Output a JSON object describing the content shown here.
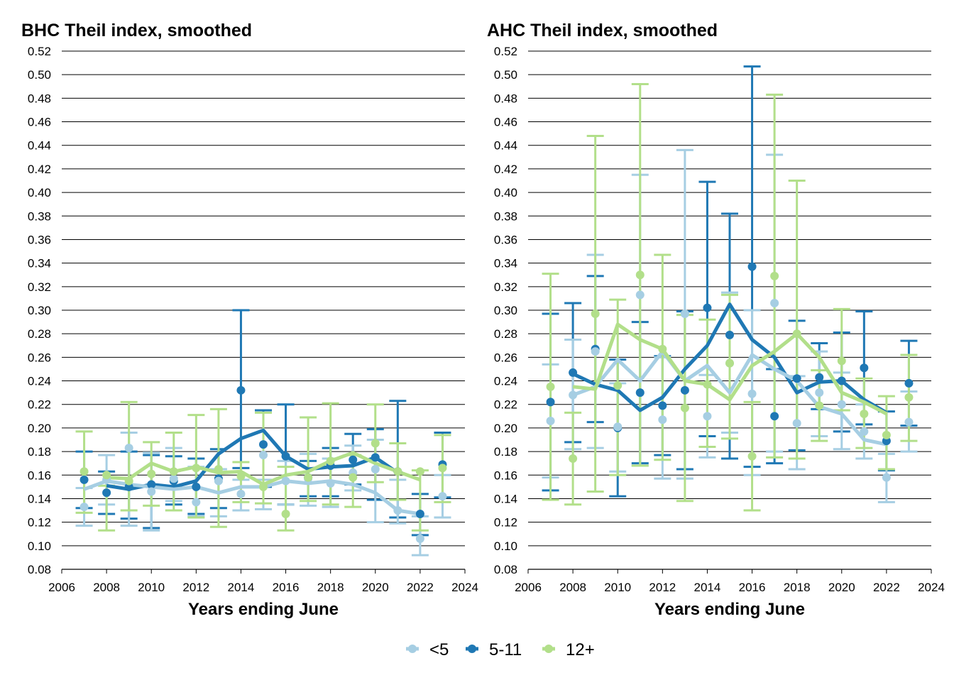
{
  "legend": [
    {
      "name": "<5",
      "color": "#a6cee3"
    },
    {
      "name": "5-11",
      "color": "#1f78b4"
    },
    {
      "name": "12+",
      "color": "#b2df8a"
    }
  ],
  "chart_data": [
    {
      "type": "line",
      "title": "BHC Theil index, smoothed",
      "xlabel": "Years ending June",
      "ylabel": "",
      "xlim": [
        2006,
        2024
      ],
      "ylim": [
        0.08,
        0.52
      ],
      "xticks": [
        "2006",
        "2008",
        "2010",
        "2012",
        "2014",
        "2016",
        "2018",
        "2020",
        "2022",
        "2024"
      ],
      "yticks": [
        "0.08",
        "0.10",
        "0.12",
        "0.14",
        "0.16",
        "0.18",
        "0.20",
        "0.22",
        "0.24",
        "0.26",
        "0.28",
        "0.30",
        "0.32",
        "0.34",
        "0.36",
        "0.38",
        "0.40",
        "0.42",
        "0.44",
        "0.46",
        "0.48",
        "0.50",
        "0.52"
      ],
      "grid": "horizontal",
      "series": [
        {
          "name": "<5",
          "color": "#a6cee3",
          "years": [
            2007,
            2008,
            2009,
            2010,
            2011,
            2012,
            2013,
            2014,
            2015,
            2016,
            2017,
            2018,
            2019,
            2020,
            2021,
            2022,
            2023
          ],
          "line": [
            0.148,
            0.155,
            0.152,
            0.15,
            0.148,
            0.15,
            0.145,
            0.15,
            0.15,
            0.155,
            0.153,
            0.155,
            0.152,
            0.145,
            0.13,
            0.127,
            null
          ],
          "point": [
            0.133,
            0.156,
            0.183,
            0.146,
            0.157,
            0.137,
            0.155,
            0.144,
            0.177,
            0.155,
            0.157,
            0.153,
            0.162,
            0.165,
            0.13,
            0.106,
            0.142
          ],
          "lower": [
            0.117,
            0.135,
            0.117,
            0.113,
            0.138,
            0.125,
            0.125,
            0.13,
            0.131,
            0.135,
            0.134,
            0.133,
            0.147,
            0.12,
            0.119,
            0.092,
            0.124
          ],
          "upper": [
            0.149,
            0.177,
            0.196,
            0.179,
            0.183,
            0.167,
            0.165,
            0.156,
            0.156,
            0.172,
            0.178,
            0.174,
            0.185,
            0.19,
            0.156,
            0.125,
            0.16
          ]
        },
        {
          "name": "5-11",
          "color": "#1f78b4",
          "years": [
            2007,
            2008,
            2009,
            2010,
            2011,
            2012,
            2013,
            2014,
            2015,
            2016,
            2017,
            2018,
            2019,
            2020,
            2021,
            2022,
            2023
          ],
          "line": [
            null,
            0.151,
            0.148,
            0.152,
            0.15,
            0.155,
            0.178,
            0.191,
            0.198,
            0.176,
            0.165,
            0.167,
            0.168,
            0.175,
            0.162,
            null,
            null
          ],
          "point": [
            0.156,
            0.145,
            0.15,
            0.152,
            0.155,
            0.15,
            0.157,
            0.232,
            0.186,
            0.176,
            0.158,
            0.168,
            0.173,
            0.175,
            0.163,
            0.127,
            0.169
          ],
          "lower": [
            0.132,
            0.127,
            0.123,
            0.115,
            0.135,
            0.127,
            0.132,
            0.166,
            0.15,
            0.135,
            0.142,
            0.142,
            0.152,
            0.139,
            0.124,
            0.109,
            0.141
          ],
          "upper": [
            0.18,
            0.163,
            0.18,
            0.177,
            0.176,
            0.174,
            0.182,
            0.3,
            0.215,
            0.22,
            0.172,
            0.183,
            0.195,
            0.199,
            0.223,
            0.144,
            0.196
          ]
        },
        {
          "name": "12+",
          "color": "#b2df8a",
          "years": [
            2007,
            2008,
            2009,
            2010,
            2011,
            2012,
            2013,
            2014,
            2015,
            2016,
            2017,
            2018,
            2019,
            2020,
            2021,
            2022,
            2023
          ],
          "line": [
            null,
            0.158,
            0.157,
            0.17,
            0.163,
            0.167,
            0.162,
            0.163,
            0.152,
            0.16,
            0.163,
            0.172,
            0.179,
            0.17,
            0.163,
            0.156,
            null
          ],
          "point": [
            0.163,
            0.16,
            0.155,
            0.161,
            0.163,
            0.166,
            0.165,
            0.159,
            0.15,
            0.127,
            0.158,
            0.172,
            0.158,
            0.187,
            0.163,
            0.163,
            0.166
          ],
          "lower": [
            0.128,
            0.113,
            0.13,
            0.134,
            0.13,
            0.124,
            0.116,
            0.137,
            0.136,
            0.113,
            0.138,
            0.135,
            0.133,
            0.154,
            0.139,
            0.113,
            0.137
          ],
          "upper": [
            0.197,
            0.151,
            0.222,
            0.188,
            0.196,
            0.211,
            0.216,
            0.171,
            0.213,
            0.167,
            0.209,
            0.221,
            0.177,
            0.22,
            0.187,
            0.164,
            0.194
          ]
        }
      ]
    },
    {
      "type": "line",
      "title": "AHC Theil index, smoothed",
      "xlabel": "Years ending June",
      "ylabel": "",
      "xlim": [
        2006,
        2024
      ],
      "ylim": [
        0.08,
        0.52
      ],
      "xticks": [
        "2006",
        "2008",
        "2010",
        "2012",
        "2014",
        "2016",
        "2018",
        "2020",
        "2022",
        "2024"
      ],
      "yticks": [
        "0.08",
        "0.10",
        "0.12",
        "0.14",
        "0.16",
        "0.18",
        "0.20",
        "0.22",
        "0.24",
        "0.26",
        "0.28",
        "0.30",
        "0.32",
        "0.34",
        "0.36",
        "0.38",
        "0.40",
        "0.42",
        "0.44",
        "0.46",
        "0.48",
        "0.50",
        "0.52"
      ],
      "grid": "horizontal",
      "series": [
        {
          "name": "<5",
          "color": "#a6cee3",
          "years": [
            2007,
            2008,
            2009,
            2010,
            2011,
            2012,
            2013,
            2014,
            2015,
            2016,
            2017,
            2018,
            2019,
            2020,
            2021,
            2022,
            2023
          ],
          "line": [
            null,
            0.228,
            0.235,
            0.258,
            0.24,
            0.265,
            0.24,
            0.253,
            0.23,
            0.262,
            0.25,
            0.24,
            0.218,
            0.212,
            0.19,
            0.186,
            null
          ],
          "point": [
            0.206,
            0.228,
            0.265,
            0.201,
            0.313,
            0.207,
            0.297,
            0.21,
            0.255,
            0.229,
            0.306,
            0.204,
            0.23,
            0.22,
            0.197,
            0.158,
            0.205
          ],
          "lower": [
            0.158,
            0.182,
            0.183,
            0.163,
            0.168,
            0.157,
            0.157,
            0.175,
            0.196,
            0.16,
            0.18,
            0.165,
            0.193,
            0.182,
            0.174,
            0.137,
            0.18
          ],
          "upper": [
            0.254,
            0.275,
            0.347,
            0.238,
            0.415,
            0.26,
            0.436,
            0.245,
            0.315,
            0.3,
            0.432,
            0.244,
            0.265,
            0.247,
            0.22,
            0.178,
            0.231
          ]
        },
        {
          "name": "5-11",
          "color": "#1f78b4",
          "years": [
            2007,
            2008,
            2009,
            2010,
            2011,
            2012,
            2013,
            2014,
            2015,
            2016,
            2017,
            2018,
            2019,
            2020,
            2021,
            2022,
            2023
          ],
          "line": [
            null,
            0.246,
            0.237,
            0.232,
            0.215,
            0.226,
            0.25,
            0.27,
            0.305,
            0.275,
            0.26,
            0.23,
            0.239,
            0.24,
            0.224,
            0.213,
            null
          ],
          "point": [
            0.222,
            0.247,
            0.267,
            0.2,
            0.23,
            0.219,
            0.232,
            0.302,
            0.279,
            0.337,
            0.21,
            0.242,
            0.243,
            0.24,
            0.251,
            0.189,
            0.238
          ],
          "lower": [
            0.147,
            0.188,
            0.205,
            0.142,
            0.17,
            0.177,
            0.165,
            0.193,
            0.174,
            0.167,
            0.17,
            0.181,
            0.216,
            0.197,
            0.203,
            0.164,
            0.202
          ],
          "upper": [
            0.297,
            0.306,
            0.329,
            0.258,
            0.29,
            0.261,
            0.299,
            0.409,
            0.382,
            0.507,
            0.25,
            0.291,
            0.272,
            0.281,
            0.299,
            0.214,
            0.274
          ]
        },
        {
          "name": "12+",
          "color": "#b2df8a",
          "years": [
            2007,
            2008,
            2009,
            2010,
            2011,
            2012,
            2013,
            2014,
            2015,
            2016,
            2017,
            2018,
            2019,
            2020,
            2021,
            2022,
            2023
          ],
          "line": [
            null,
            0.235,
            0.233,
            0.288,
            0.275,
            0.267,
            0.24,
            0.237,
            0.224,
            0.253,
            0.265,
            0.28,
            0.26,
            0.23,
            0.222,
            0.212,
            null
          ],
          "point": [
            0.235,
            0.174,
            0.297,
            0.236,
            0.33,
            0.267,
            0.217,
            0.237,
            0.255,
            0.176,
            0.329,
            0.28,
            0.219,
            0.257,
            0.212,
            0.194,
            0.226
          ],
          "lower": [
            0.139,
            0.135,
            0.146,
            0.16,
            0.168,
            0.173,
            0.138,
            0.184,
            0.191,
            0.13,
            0.175,
            0.174,
            0.189,
            0.215,
            0.183,
            0.165,
            0.189
          ],
          "upper": [
            0.331,
            0.213,
            0.448,
            0.309,
            0.492,
            0.347,
            0.296,
            0.292,
            0.313,
            0.222,
            0.483,
            0.41,
            0.249,
            0.301,
            0.242,
            0.227,
            0.262
          ]
        }
      ]
    }
  ]
}
